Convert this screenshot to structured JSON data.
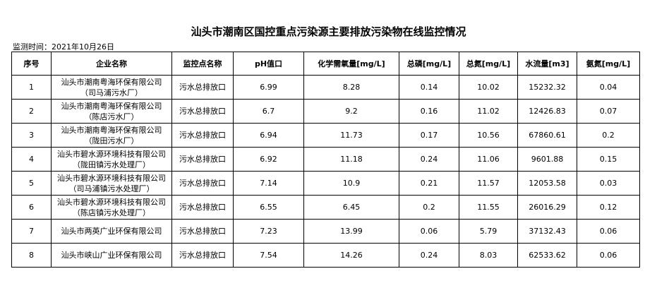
{
  "header": {
    "title": "汕头市潮南区国控重点污染源主要排放污染物在线监控情况",
    "monitor_time": "监测时间：2021年10月26日"
  },
  "table": {
    "columns": [
      "序号",
      "企业名称",
      "监控点名称",
      "pH值口",
      "化学需氧量[mg/L]",
      "总磷[mg/L]",
      "总氮[mg/L]",
      "水流量[m3]",
      "氨氮[mg/L]"
    ],
    "rows": [
      [
        "1",
        [
          "汕头市潮南粤海环保有限公司",
          "（司马浦污水厂）"
        ],
        "污水总排放口",
        "6.99",
        "8.28",
        "0.14",
        "10.02",
        "15232.32",
        "0.04"
      ],
      [
        "2",
        [
          "汕头市潮南粤海环保有限公司",
          "（陈店污水厂）"
        ],
        "污水总排放口",
        "6.7",
        "9.2",
        "0.16",
        "11.02",
        "12426.83",
        "0.07"
      ],
      [
        "3",
        [
          "汕头市潮南粤海环保有限公司",
          "（陇田污水厂）"
        ],
        "污水总排放口",
        "6.94",
        "11.73",
        "0.17",
        "10.56",
        "67860.61",
        "0.2"
      ],
      [
        "4",
        [
          "汕头市碧水源环境科技有限公司",
          "（陇田镇污水处理厂）"
        ],
        "污水总排放口",
        "6.92",
        "11.18",
        "0.24",
        "11.06",
        "9601.88",
        "0.15"
      ],
      [
        "5",
        [
          "汕头市碧水源环境科技有限公司",
          "（司马浦镇污水处理厂）"
        ],
        "污水总排放口",
        "7.14",
        "10.9",
        "0.21",
        "11.57",
        "12053.58",
        "0.03"
      ],
      [
        "6",
        [
          "汕头市碧水源环境科技有限公司",
          "（陈店镇污水处理厂）"
        ],
        "污水总排放口",
        "6.55",
        "6.45",
        "0.2",
        "11.55",
        "26016.29",
        "0.12"
      ],
      [
        "7",
        [
          "汕头市两英广业环保有限公司"
        ],
        "污水总排放口",
        "7.23",
        "13.99",
        "0.06",
        "5.79",
        "37132.43",
        "0.06"
      ],
      [
        "8",
        [
          "汕头市峡山广业环保有限公司"
        ],
        "污水总排放口",
        "7.54",
        "14.26",
        "0.24",
        "8.03",
        "62533.62",
        "0.06"
      ]
    ]
  }
}
